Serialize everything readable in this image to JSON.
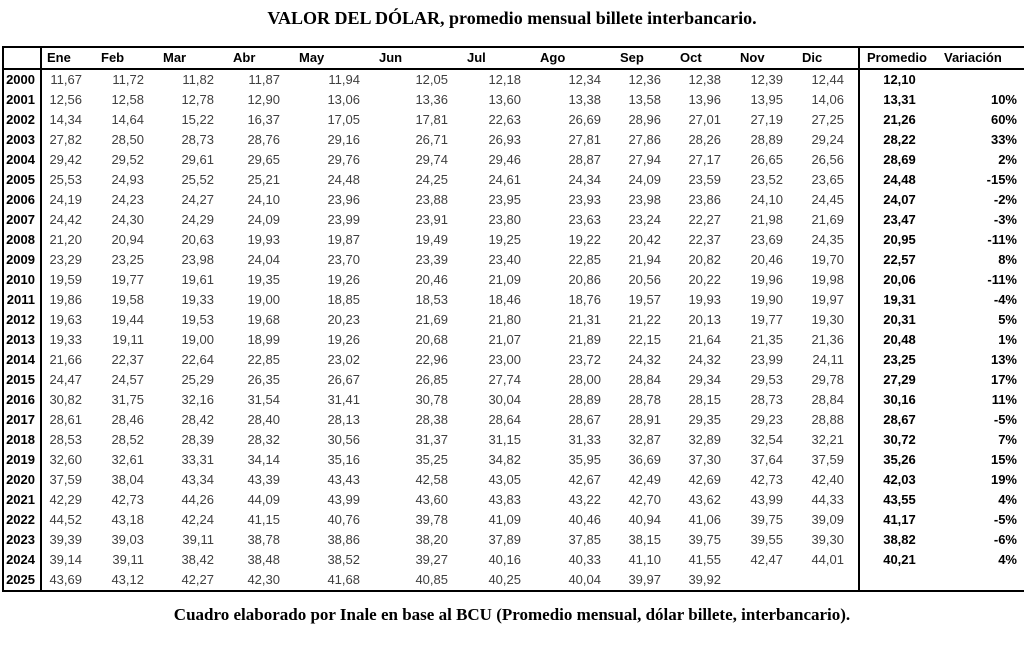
{
  "page": {
    "title": "VALOR DEL DÓLAR, promedio mensual billete interbancario.",
    "caption": "Cuadro elaborado por Inale en base al BCU (Promedio mensual, dólar billete, interbancario)."
  },
  "colors": {
    "background": "#ffffff",
    "border": "#000000",
    "header_text": "#000000",
    "value_text": "#3f3f3f",
    "bold_text": "#000000"
  },
  "chart_data": {
    "type": "table",
    "title": "VALOR DEL DÓLAR, promedio mensual billete interbancario.",
    "caption": "Cuadro elaborado por Inale en base al BCU (Promedio mensual, dólar billete, interbancario).",
    "columns": [
      "",
      "Ene",
      "Feb",
      "Mar",
      "Abr",
      "May",
      "Jun",
      "Jul",
      "Ago",
      "Sep",
      "Oct",
      "Nov",
      "Dic",
      "Promedio",
      "Variación"
    ],
    "rows": [
      {
        "year": "2000",
        "values": [
          "11,67",
          "11,72",
          "11,82",
          "11,87",
          "11,94",
          "12,05",
          "12,18",
          "12,34",
          "12,36",
          "12,38",
          "12,39",
          "12,44"
        ],
        "promedio": "12,10",
        "variacion": ""
      },
      {
        "year": "2001",
        "values": [
          "12,56",
          "12,58",
          "12,78",
          "12,90",
          "13,06",
          "13,36",
          "13,60",
          "13,38",
          "13,58",
          "13,96",
          "13,95",
          "14,06"
        ],
        "promedio": "13,31",
        "variacion": "10%"
      },
      {
        "year": "2002",
        "values": [
          "14,34",
          "14,64",
          "15,22",
          "16,37",
          "17,05",
          "17,81",
          "22,63",
          "26,69",
          "28,96",
          "27,01",
          "27,19",
          "27,25"
        ],
        "promedio": "21,26",
        "variacion": "60%"
      },
      {
        "year": "2003",
        "values": [
          "27,82",
          "28,50",
          "28,73",
          "28,76",
          "29,16",
          "26,71",
          "26,93",
          "27,81",
          "27,86",
          "28,26",
          "28,89",
          "29,24"
        ],
        "promedio": "28,22",
        "variacion": "33%"
      },
      {
        "year": "2004",
        "values": [
          "29,42",
          "29,52",
          "29,61",
          "29,65",
          "29,76",
          "29,74",
          "29,46",
          "28,87",
          "27,94",
          "27,17",
          "26,65",
          "26,56"
        ],
        "promedio": "28,69",
        "variacion": "2%"
      },
      {
        "year": "2005",
        "values": [
          "25,53",
          "24,93",
          "25,52",
          "25,21",
          "24,48",
          "24,25",
          "24,61",
          "24,34",
          "24,09",
          "23,59",
          "23,52",
          "23,65"
        ],
        "promedio": "24,48",
        "variacion": "-15%"
      },
      {
        "year": "2006",
        "values": [
          "24,19",
          "24,23",
          "24,27",
          "24,10",
          "23,96",
          "23,88",
          "23,95",
          "23,93",
          "23,98",
          "23,86",
          "24,10",
          "24,45"
        ],
        "promedio": "24,07",
        "variacion": "-2%"
      },
      {
        "year": "2007",
        "values": [
          "24,42",
          "24,30",
          "24,29",
          "24,09",
          "23,99",
          "23,91",
          "23,80",
          "23,63",
          "23,24",
          "22,27",
          "21,98",
          "21,69"
        ],
        "promedio": "23,47",
        "variacion": "-3%"
      },
      {
        "year": "2008",
        "values": [
          "21,20",
          "20,94",
          "20,63",
          "19,93",
          "19,87",
          "19,49",
          "19,25",
          "19,22",
          "20,42",
          "22,37",
          "23,69",
          "24,35"
        ],
        "promedio": "20,95",
        "variacion": "-11%"
      },
      {
        "year": "2009",
        "values": [
          "23,29",
          "23,25",
          "23,98",
          "24,04",
          "23,70",
          "23,39",
          "23,40",
          "22,85",
          "21,94",
          "20,82",
          "20,46",
          "19,70"
        ],
        "promedio": "22,57",
        "variacion": "8%"
      },
      {
        "year": "2010",
        "values": [
          "19,59",
          "19,77",
          "19,61",
          "19,35",
          "19,26",
          "20,46",
          "21,09",
          "20,86",
          "20,56",
          "20,22",
          "19,96",
          "19,98"
        ],
        "promedio": "20,06",
        "variacion": "-11%"
      },
      {
        "year": "2011",
        "values": [
          "19,86",
          "19,58",
          "19,33",
          "19,00",
          "18,85",
          "18,53",
          "18,46",
          "18,76",
          "19,57",
          "19,93",
          "19,90",
          "19,97"
        ],
        "promedio": "19,31",
        "variacion": "-4%"
      },
      {
        "year": "2012",
        "values": [
          "19,63",
          "19,44",
          "19,53",
          "19,68",
          "20,23",
          "21,69",
          "21,80",
          "21,31",
          "21,22",
          "20,13",
          "19,77",
          "19,30"
        ],
        "promedio": "20,31",
        "variacion": "5%"
      },
      {
        "year": "2013",
        "values": [
          "19,33",
          "19,11",
          "19,00",
          "18,99",
          "19,26",
          "20,68",
          "21,07",
          "21,89",
          "22,15",
          "21,64",
          "21,35",
          "21,36"
        ],
        "promedio": "20,48",
        "variacion": "1%"
      },
      {
        "year": "2014",
        "values": [
          "21,66",
          "22,37",
          "22,64",
          "22,85",
          "23,02",
          "22,96",
          "23,00",
          "23,72",
          "24,32",
          "24,32",
          "23,99",
          "24,11"
        ],
        "promedio": "23,25",
        "variacion": "13%"
      },
      {
        "year": "2015",
        "values": [
          "24,47",
          "24,57",
          "25,29",
          "26,35",
          "26,67",
          "26,85",
          "27,74",
          "28,00",
          "28,84",
          "29,34",
          "29,53",
          "29,78"
        ],
        "promedio": "27,29",
        "variacion": "17%"
      },
      {
        "year": "2016",
        "values": [
          "30,82",
          "31,75",
          "32,16",
          "31,54",
          "31,41",
          "30,78",
          "30,04",
          "28,89",
          "28,78",
          "28,15",
          "28,73",
          "28,84"
        ],
        "promedio": "30,16",
        "variacion": "11%"
      },
      {
        "year": "2017",
        "values": [
          "28,61",
          "28,46",
          "28,42",
          "28,40",
          "28,13",
          "28,38",
          "28,64",
          "28,67",
          "28,91",
          "29,35",
          "29,23",
          "28,88"
        ],
        "promedio": "28,67",
        "variacion": "-5%"
      },
      {
        "year": "2018",
        "values": [
          "28,53",
          "28,52",
          "28,39",
          "28,32",
          "30,56",
          "31,37",
          "31,15",
          "31,33",
          "32,87",
          "32,89",
          "32,54",
          "32,21"
        ],
        "promedio": "30,72",
        "variacion": "7%"
      },
      {
        "year": "2019",
        "values": [
          "32,60",
          "32,61",
          "33,31",
          "34,14",
          "35,16",
          "35,25",
          "34,82",
          "35,95",
          "36,69",
          "37,30",
          "37,64",
          "37,59"
        ],
        "promedio": "35,26",
        "variacion": "15%"
      },
      {
        "year": "2020",
        "values": [
          "37,59",
          "38,04",
          "43,34",
          "43,39",
          "43,43",
          "42,58",
          "43,05",
          "42,67",
          "42,49",
          "42,69",
          "42,73",
          "42,40"
        ],
        "promedio": "42,03",
        "variacion": "19%"
      },
      {
        "year": "2021",
        "values": [
          "42,29",
          "42,73",
          "44,26",
          "44,09",
          "43,99",
          "43,60",
          "43,83",
          "43,22",
          "42,70",
          "43,62",
          "43,99",
          "44,33"
        ],
        "promedio": "43,55",
        "variacion": "4%"
      },
      {
        "year": "2022",
        "values": [
          "44,52",
          "43,18",
          "42,24",
          "41,15",
          "40,76",
          "39,78",
          "41,09",
          "40,46",
          "40,94",
          "41,06",
          "39,75",
          "39,09"
        ],
        "promedio": "41,17",
        "variacion": "-5%"
      },
      {
        "year": "2023",
        "values": [
          "39,39",
          "39,03",
          "39,11",
          "38,78",
          "38,86",
          "38,20",
          "37,89",
          "37,85",
          "38,15",
          "39,75",
          "39,55",
          "39,30"
        ],
        "promedio": "38,82",
        "variacion": "-6%"
      },
      {
        "year": "2024",
        "values": [
          "39,14",
          "39,11",
          "38,42",
          "38,48",
          "38,52",
          "39,27",
          "40,16",
          "40,33",
          "41,10",
          "41,55",
          "42,47",
          "44,01"
        ],
        "promedio": "40,21",
        "variacion": "4%"
      },
      {
        "year": "2025",
        "values": [
          "43,69",
          "43,12",
          "42,27",
          "42,30",
          "41,68",
          "40,85",
          "40,25",
          "40,04",
          "39,97",
          "39,92",
          "",
          ""
        ],
        "promedio": "",
        "variacion": ""
      }
    ]
  }
}
